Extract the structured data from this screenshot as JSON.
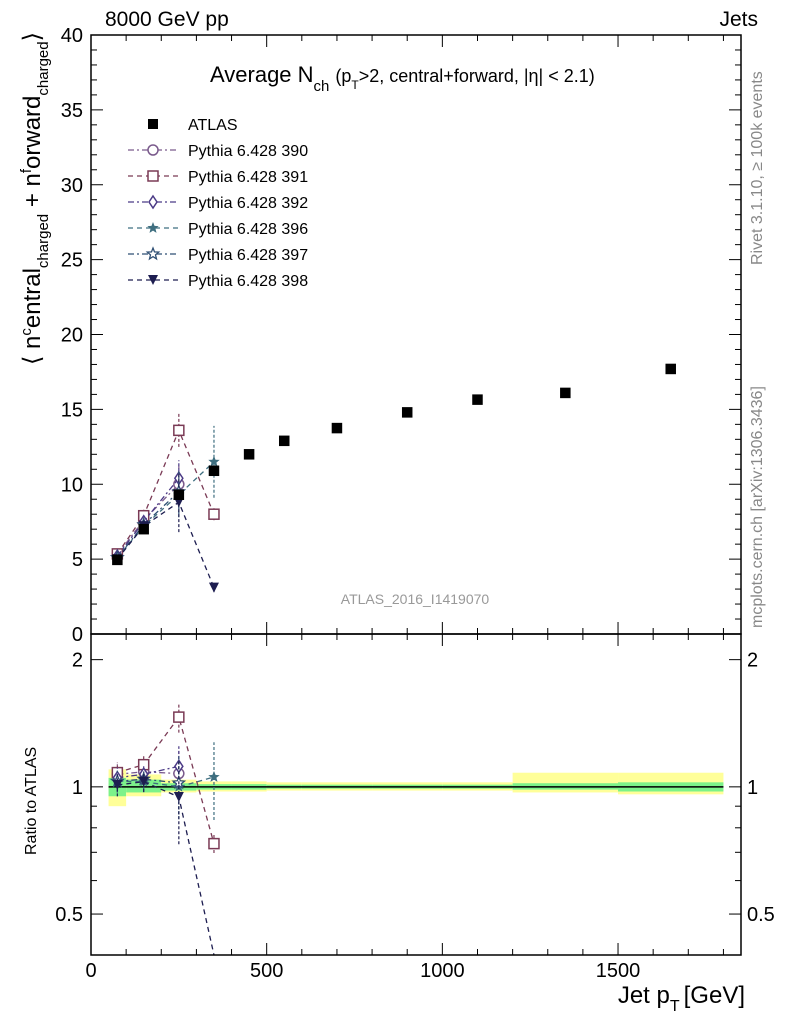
{
  "header": {
    "energy": "8000 GeV pp",
    "process": "Jets"
  },
  "plot": {
    "title_main": "Average N",
    "title_sub": "ch",
    "title_cond": "(p",
    "title_cond_sub": "T",
    "title_cond_rest": ">2, central+forward, |η| < 2.1)",
    "ylabel": "⟨ nᶜentraI",
    "ylabel_text": "⟨ n",
    "watermark": "ATLAS_2016_I1419070"
  },
  "side": {
    "rivet": "Rivet 3.1.10, ≥ 100k events",
    "mcplots": "mcplots.cern.ch [arXiv:1306.3436]"
  },
  "axes": {
    "xlabel_main": "Jet p",
    "xlabel_sub": "T",
    "xlabel_unit": "[GeV]",
    "ratio_ylabel": "Ratio to ATLAS",
    "main_yticks": [
      "0",
      "5",
      "10",
      "15",
      "20",
      "25",
      "30",
      "35",
      "40"
    ],
    "ratio_yticks": [
      "0.5",
      "1",
      "2"
    ],
    "xticks": [
      "0",
      "500",
      "1000",
      "1500"
    ]
  },
  "legend": [
    {
      "label": "ATLAS",
      "color": "#000000",
      "marker": "filled-square"
    },
    {
      "label": "Pythia 6.428 390",
      "color": "#7a5a8c",
      "marker": "open-circle"
    },
    {
      "label": "Pythia 6.428 391",
      "color": "#7a3a55",
      "marker": "open-square"
    },
    {
      "label": "Pythia 6.428 392",
      "color": "#4b3a86",
      "marker": "open-diamond"
    },
    {
      "label": "Pythia 6.428 396",
      "color": "#3f6f80",
      "marker": "filled-star"
    },
    {
      "label": "Pythia 6.428 397",
      "color": "#2f4f74",
      "marker": "open-star"
    },
    {
      "label": "Pythia 6.428 398",
      "color": "#1d1d50",
      "marker": "filled-triangle-down"
    }
  ],
  "chart_data": {
    "type": "scatter",
    "x_range": [
      0,
      1850
    ],
    "main_ylim": [
      0,
      40
    ],
    "ratio_ylim": [
      0.4,
      2.3
    ],
    "ratio_log_scale": true,
    "data": {
      "name": "ATLAS",
      "x": [
        75,
        150,
        250,
        350,
        450,
        550,
        700,
        900,
        1100,
        1350,
        1650
      ],
      "y": [
        4.95,
        7.0,
        9.3,
        10.9,
        12.0,
        12.9,
        13.75,
        14.8,
        15.65,
        16.1,
        17.7
      ]
    },
    "band": {
      "edges": [
        50,
        100,
        200,
        300,
        400,
        500,
        600,
        800,
        1000,
        1200,
        1500,
        1800
      ],
      "green": [
        [
          0.95,
          1.05
        ],
        [
          0.97,
          1.04
        ],
        [
          0.98,
          1.02
        ],
        [
          0.985,
          1.015
        ],
        [
          0.985,
          1.015
        ],
        [
          0.99,
          1.012
        ],
        [
          0.99,
          1.012
        ],
        [
          0.99,
          1.012
        ],
        [
          0.99,
          1.012
        ],
        [
          0.985,
          1.02
        ],
        [
          0.975,
          1.025
        ]
      ],
      "yellow": [
        [
          0.9,
          1.1
        ],
        [
          0.95,
          1.07
        ],
        [
          0.97,
          1.04
        ],
        [
          0.975,
          1.03
        ],
        [
          0.975,
          1.03
        ],
        [
          0.98,
          1.025
        ],
        [
          0.98,
          1.025
        ],
        [
          0.98,
          1.025
        ],
        [
          0.98,
          1.025
        ],
        [
          0.97,
          1.08
        ],
        [
          0.96,
          1.08
        ]
      ]
    },
    "mc_series": [
      {
        "name": "Pythia 6.428 390",
        "x": [
          75,
          150,
          250
        ],
        "y": [
          5.3,
          7.6,
          10.0
        ],
        "err": [
          0.3,
          0.4,
          1.3
        ]
      },
      {
        "name": "Pythia 6.428 391",
        "x": [
          75,
          150,
          250,
          350
        ],
        "y": [
          5.35,
          7.9,
          13.6,
          8.0
        ],
        "err": [
          0.3,
          0.4,
          1.1,
          0.4
        ]
      },
      {
        "name": "Pythia 6.428 392",
        "x": [
          75,
          150,
          250
        ],
        "y": [
          5.2,
          7.5,
          10.4
        ],
        "err": [
          0.3,
          0.4,
          1.2
        ]
      },
      {
        "name": "Pythia 6.428 396",
        "x": [
          75,
          150,
          250,
          350
        ],
        "y": [
          5.1,
          7.2,
          9.3,
          11.5
        ],
        "err": [
          0.3,
          0.4,
          1.5,
          2.4
        ]
      },
      {
        "name": "Pythia 6.428 397",
        "x": [
          75,
          150,
          250
        ],
        "y": [
          5.1,
          7.3,
          9.5
        ],
        "err": [
          0.3,
          0.4,
          1.5
        ]
      },
      {
        "name": "Pythia 6.428 398",
        "x": [
          75,
          150,
          250,
          350
        ],
        "y": [
          5.0,
          7.2,
          8.8,
          3.1
        ],
        "err": [
          0.3,
          0.4,
          2.0,
          0.3
        ]
      }
    ]
  }
}
